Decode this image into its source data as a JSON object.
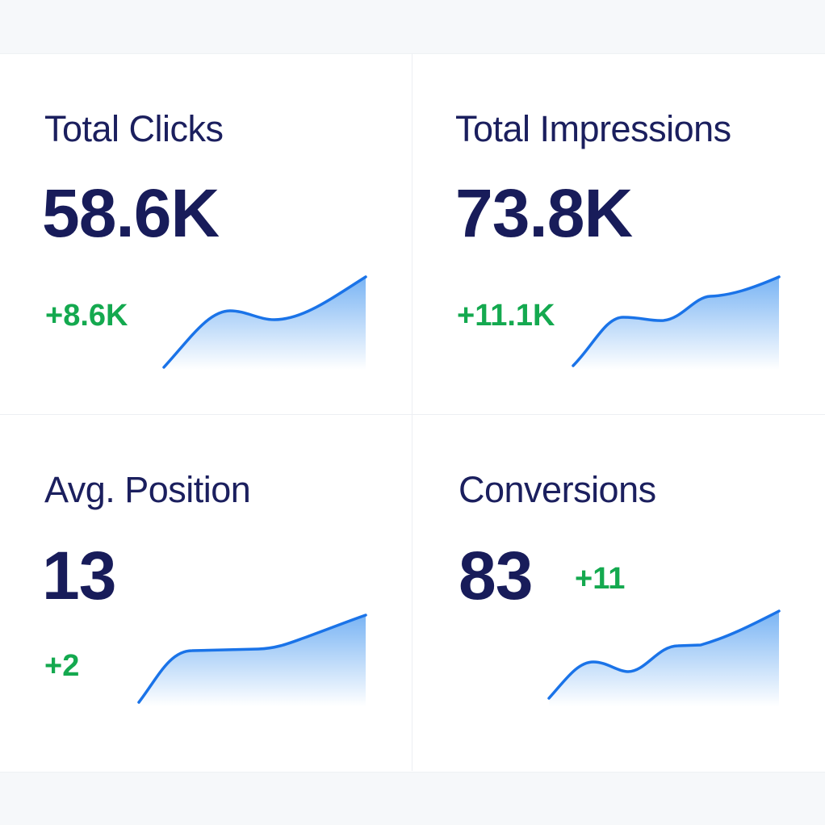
{
  "colors": {
    "title": "#1b1f5e",
    "value": "#181c5a",
    "delta": "#14a94f",
    "line": "#1a73e8"
  },
  "cards": [
    {
      "title": "Total Clicks",
      "value": "58.6K",
      "delta": "+8.6K"
    },
    {
      "title": "Total Impressions",
      "value": "73.8K",
      "delta": "+11.1K"
    },
    {
      "title": "Avg. Position",
      "value": "13",
      "delta": "+2"
    },
    {
      "title": "Conversions",
      "value": "83",
      "delta": "+11"
    }
  ]
}
